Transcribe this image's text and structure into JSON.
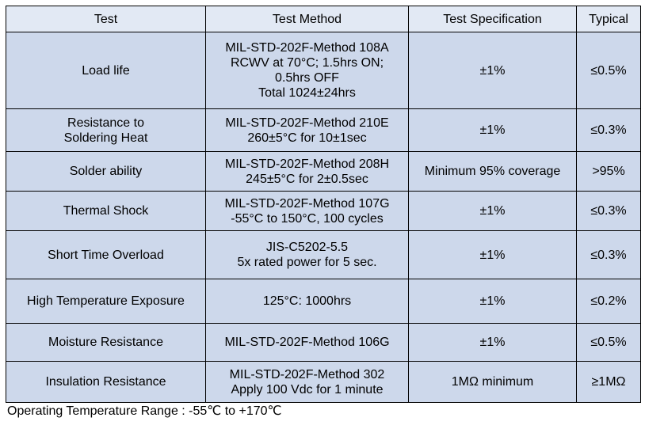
{
  "table": {
    "headers": [
      "Test",
      "Test Method",
      "Test Specification",
      "Typical"
    ],
    "rows": [
      {
        "test": [
          "Load life"
        ],
        "method": [
          "MIL-STD-202F-Method 108A",
          "RCWV at 70°C; 1.5hrs ON;",
          "0.5hrs OFF",
          "Total 1024±24hrs"
        ],
        "spec": "±1%",
        "typical": "≤0.5%"
      },
      {
        "test": [
          "Resistance to",
          "Soldering Heat"
        ],
        "method": [
          "MIL-STD-202F-Method 210E",
          "260±5°C  for 10±1sec"
        ],
        "spec": "±1%",
        "typical": "≤0.3%"
      },
      {
        "test": [
          "Solder ability"
        ],
        "method": [
          "MIL-STD-202F-Method 208H",
          "245±5°C  for 2±0.5sec"
        ],
        "spec": "Minimum 95% coverage",
        "typical": ">95%"
      },
      {
        "test": [
          "Thermal Shock"
        ],
        "method": [
          "MIL-STD-202F-Method 107G",
          "-55°C  to 150°C, 100 cycles"
        ],
        "spec": "±1%",
        "typical": "≤0.3%"
      },
      {
        "test": [
          "Short Time Overload"
        ],
        "method": [
          "JIS-C5202-5.5",
          "5x rated power for 5 sec."
        ],
        "spec": "±1%",
        "typical": "≤0.3%"
      },
      {
        "test": [
          "High Temperature Exposure"
        ],
        "method": [
          "125°C: 1000hrs"
        ],
        "spec": "±1%",
        "typical": "≤0.2%"
      },
      {
        "test": [
          "Moisture Resistance"
        ],
        "method": [
          "MIL-STD-202F-Method 106G"
        ],
        "spec": "±1%",
        "typical": "≤0.5%"
      },
      {
        "test": [
          "Insulation Resistance"
        ],
        "method": [
          "MIL-STD-202F-Method 302",
          "Apply 100 Vdc for 1 minute"
        ],
        "spec": "1MΩ    minimum",
        "typical": "≥1MΩ"
      }
    ]
  },
  "footer": "Operating Temperature Range : -55℃   to +170℃",
  "colors": {
    "header_bg": "#e2e9f4",
    "row_bg": "#cdd8eb",
    "border": "#000000"
  }
}
